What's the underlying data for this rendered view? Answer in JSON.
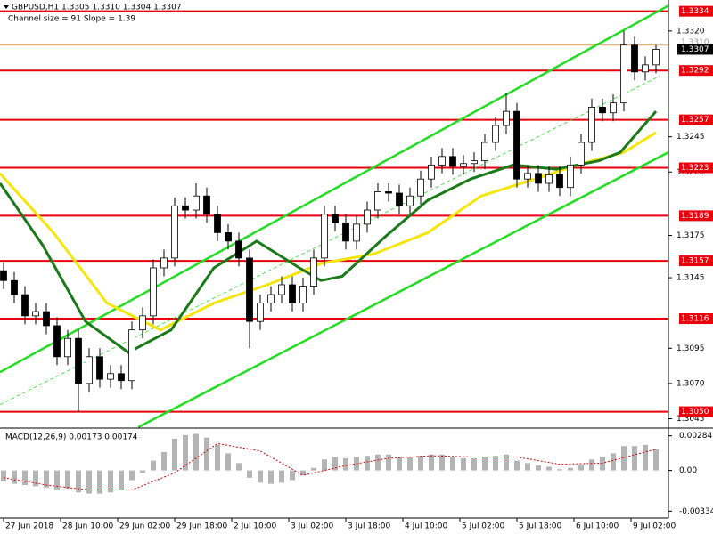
{
  "chart_data": [
    {
      "type": "candlestick",
      "title": "GBPUSD,H1  1.3305 1.3310 1.3304 1.3307",
      "subtitle": "Channel size = 91 Slope = 1.39",
      "x": [
        0,
        3,
        6,
        9,
        12,
        15,
        18,
        21,
        24,
        27,
        30,
        33,
        36,
        39,
        42,
        45,
        48,
        51,
        54,
        57,
        60,
        63,
        66,
        69,
        72,
        75,
        78,
        81,
        84,
        87,
        90,
        93,
        96,
        99,
        102,
        105,
        108,
        111,
        114,
        117,
        120,
        123,
        126,
        129,
        132,
        135,
        138,
        141,
        144,
        147,
        150,
        153,
        156,
        159,
        162,
        165,
        168,
        171,
        174,
        177,
        180,
        183
      ],
      "open": [
        1.315,
        1.3143,
        1.3133,
        1.3118,
        1.3121,
        1.3111,
        1.3089,
        1.3102,
        1.307,
        1.3089,
        1.3073,
        1.3077,
        1.3072,
        1.3108,
        1.3118,
        1.3152,
        1.3159,
        1.3196,
        1.3193,
        1.3203,
        1.319,
        1.3177,
        1.3171,
        1.3159,
        1.3114,
        1.3127,
        1.3133,
        1.314,
        1.3127,
        1.3139,
        1.3159,
        1.319,
        1.3184,
        1.3171,
        1.3183,
        1.3193,
        1.3206,
        1.3205,
        1.3196,
        1.3203,
        1.3215,
        1.3225,
        1.3231,
        1.3224,
        1.3226,
        1.3228,
        1.3241,
        1.3253,
        1.3263,
        1.3215,
        1.3219,
        1.3212,
        1.3218,
        1.3209,
        1.3225,
        1.3241,
        1.3266,
        1.3262,
        1.3269,
        1.331,
        1.3291,
        1.3296
      ],
      "high": [
        1.3156,
        1.3149,
        1.3139,
        1.3127,
        1.3127,
        1.3117,
        1.3108,
        1.3108,
        1.3095,
        1.3095,
        1.3083,
        1.3083,
        1.3114,
        1.3124,
        1.3158,
        1.3165,
        1.3202,
        1.3202,
        1.3212,
        1.3209,
        1.3196,
        1.3183,
        1.3177,
        1.3165,
        1.3133,
        1.3139,
        1.3146,
        1.3146,
        1.3145,
        1.3165,
        1.3196,
        1.3196,
        1.319,
        1.3189,
        1.3199,
        1.3212,
        1.3212,
        1.3211,
        1.3209,
        1.3221,
        1.3231,
        1.3237,
        1.3237,
        1.3232,
        1.3234,
        1.3247,
        1.3259,
        1.3276,
        1.3269,
        1.3225,
        1.3225,
        1.3224,
        1.3224,
        1.3231,
        1.3247,
        1.3272,
        1.3272,
        1.3275,
        1.332,
        1.3316,
        1.3302,
        1.331
      ],
      "low": [
        1.3137,
        1.3127,
        1.3112,
        1.3112,
        1.3105,
        1.3083,
        1.3083,
        1.305,
        1.3064,
        1.3067,
        1.3067,
        1.3066,
        1.3066,
        1.3102,
        1.3112,
        1.3146,
        1.3153,
        1.3187,
        1.3187,
        1.3184,
        1.3171,
        1.3165,
        1.3153,
        1.3095,
        1.3108,
        1.3121,
        1.3127,
        1.3121,
        1.3121,
        1.3133,
        1.3153,
        1.3178,
        1.3165,
        1.3165,
        1.3177,
        1.3187,
        1.3199,
        1.319,
        1.319,
        1.3197,
        1.3209,
        1.3219,
        1.3218,
        1.3218,
        1.322,
        1.3222,
        1.3235,
        1.3247,
        1.3209,
        1.3209,
        1.3206,
        1.3206,
        1.3203,
        1.3203,
        1.3219,
        1.3235,
        1.3256,
        1.3256,
        1.3263,
        1.3285,
        1.3285,
        1.329
      ],
      "close": [
        1.3143,
        1.3133,
        1.3118,
        1.3121,
        1.3111,
        1.3089,
        1.3102,
        1.307,
        1.3089,
        1.3073,
        1.3077,
        1.3072,
        1.3108,
        1.3118,
        1.3152,
        1.3159,
        1.3196,
        1.3193,
        1.3203,
        1.319,
        1.3177,
        1.3171,
        1.3159,
        1.3114,
        1.3127,
        1.3133,
        1.314,
        1.3127,
        1.3139,
        1.3159,
        1.319,
        1.3184,
        1.3171,
        1.3183,
        1.3193,
        1.3206,
        1.3205,
        1.3196,
        1.3203,
        1.3215,
        1.3225,
        1.3231,
        1.3224,
        1.3226,
        1.3228,
        1.3241,
        1.3253,
        1.3263,
        1.3215,
        1.3219,
        1.3212,
        1.3218,
        1.3209,
        1.3225,
        1.3241,
        1.3266,
        1.3262,
        1.3269,
        1.331,
        1.3291,
        1.3296,
        1.3307
      ],
      "up_color": "#ffffff",
      "down_color": "#000000",
      "xlim": [
        -1,
        186.5
      ],
      "ylim": [
        1.3039,
        1.3342
      ],
      "xticks": [
        {
          "value": 0,
          "label": "27 Jun 2018"
        },
        {
          "value": 16,
          "label": "28 Jun 10:00"
        },
        {
          "value": 32,
          "label": "29 Jun 02:00"
        },
        {
          "value": 48,
          "label": "29 Jun 18:00"
        },
        {
          "value": 64,
          "label": "2 Jul 10:00"
        },
        {
          "value": 80,
          "label": "3 Jul 02:00"
        },
        {
          "value": 96,
          "label": "3 Jul 18:00"
        },
        {
          "value": 112,
          "label": "4 Jul 10:00"
        },
        {
          "value": 128,
          "label": "5 Jul 02:00"
        },
        {
          "value": 144,
          "label": "5 Jul 18:00"
        },
        {
          "value": 160,
          "label": "6 Jul 10:00"
        },
        {
          "value": 176,
          "label": "9 Jul 02:00"
        }
      ],
      "yticks": [
        {
          "value": 1.332,
          "label": "1.3320"
        },
        1.3245,
        {
          "value": 1.322,
          "label": "1.3220"
        },
        1.3175,
        1.3145,
        1.3095,
        {
          "value": 1.307,
          "label": "1.3070"
        },
        1.3045
      ],
      "levels": [
        1.3334,
        1.3292,
        1.3257,
        1.3223,
        1.3189,
        1.3157,
        1.3116,
        {
          "value": 1.305,
          "label": "1.3050"
        }
      ],
      "level_color": "#e8000b",
      "bid": {
        "value": 1.331,
        "label": "1.3310"
      },
      "bid_color": "#e0a050",
      "current_price": 1.3307,
      "series": [
        {
          "color": "#22dd22",
          "width": 2.5,
          "x": [
            -1,
            186.5
          ],
          "values": [
            1.3078,
            1.3338
          ]
        },
        {
          "color": "#22dd22",
          "width": 2.5,
          "x": [
            37.75,
            186.5
          ],
          "values": [
            1.3039,
            1.3234
          ]
        },
        {
          "color": "#22dd22",
          "width": 0.8,
          "dashed": true,
          "x": [
            -1,
            184
          ],
          "values": [
            1.3055,
            1.3288
          ]
        },
        {
          "color": "#f5e50a",
          "width": 3,
          "x": [
            -1,
            14,
            29,
            44,
            59,
            74,
            89,
            104,
            119,
            134,
            149,
            161,
            174,
            183
          ],
          "values": [
            1.3219,
            1.3177,
            1.3127,
            1.3108,
            1.3127,
            1.314,
            1.3155,
            1.3162,
            1.3177,
            1.3203,
            1.3215,
            1.3225,
            1.3234,
            1.3248
          ]
        },
        {
          "color": "#1a7a1a",
          "width": 3,
          "x": [
            -1,
            11,
            23,
            35,
            47,
            59,
            71,
            83,
            89,
            95,
            107,
            119,
            131,
            143,
            155,
            167,
            173,
            183
          ],
          "values": [
            1.3212,
            1.3168,
            1.3114,
            1.3092,
            1.3108,
            1.3152,
            1.3171,
            1.3152,
            1.3143,
            1.3146,
            1.3174,
            1.32,
            1.3215,
            1.3225,
            1.3222,
            1.3228,
            1.3234,
            1.3263
          ]
        }
      ]
    },
    {
      "type": "macd",
      "title": "MACD(12,26,9) 0.00173 0.00174",
      "x": [
        0,
        3,
        6,
        9,
        12,
        15,
        18,
        21,
        24,
        27,
        30,
        33,
        36,
        39,
        42,
        45,
        48,
        51,
        54,
        57,
        60,
        63,
        66,
        69,
        72,
        75,
        78,
        81,
        84,
        87,
        90,
        93,
        96,
        99,
        102,
        105,
        108,
        111,
        114,
        117,
        120,
        123,
        126,
        129,
        132,
        135,
        138,
        141,
        144,
        147,
        150,
        153,
        156,
        159,
        162,
        165,
        168,
        171,
        174,
        177,
        180,
        183
      ],
      "values": [
        -0.0009,
        -0.0011,
        -0.0012,
        -0.0013,
        -0.0014,
        -0.0016,
        -0.0015,
        -0.0018,
        -0.0019,
        -0.0019,
        -0.0018,
        -0.0016,
        -0.0008,
        -0.0002,
        0.0008,
        0.0015,
        0.0026,
        0.0029,
        0.003,
        0.0027,
        0.0021,
        0.0014,
        0.0006,
        -0.0006,
        -0.001,
        -0.0011,
        -0.001,
        -0.0008,
        -0.0004,
        0.0002,
        0.0009,
        0.0011,
        0.001,
        0.0011,
        0.0012,
        0.0013,
        0.0013,
        0.0011,
        0.0011,
        0.0012,
        0.0013,
        0.0013,
        0.0011,
        0.001,
        0.001,
        0.0011,
        0.0012,
        0.0013,
        0.0008,
        0.0006,
        0.0004,
        0.0003,
        0.0001,
        0.0002,
        0.0004,
        0.0009,
        0.0011,
        0.0014,
        0.002,
        0.002,
        0.0021,
        0.00173
      ],
      "color": "#b4b4b4",
      "signal": {
        "color": "#e00000",
        "x": [
          0,
          12,
          24,
          36,
          48,
          60,
          72,
          84,
          96,
          108,
          120,
          132,
          144,
          156,
          168,
          183
        ],
        "values": [
          -0.0006,
          -0.0012,
          -0.0016,
          -0.0016,
          -0.0002,
          0.0022,
          0.0016,
          -0.0004,
          0.0004,
          0.001,
          0.0012,
          0.0011,
          0.0011,
          0.0005,
          0.0006,
          0.00174
        ]
      },
      "xlim": [
        -1,
        186.5
      ],
      "ylim": [
        -0.0039,
        0.0034
      ],
      "yticks": [
        0.00284,
        {
          "value": 0,
          "label": "0.00"
        },
        -0.00334
      ]
    }
  ]
}
